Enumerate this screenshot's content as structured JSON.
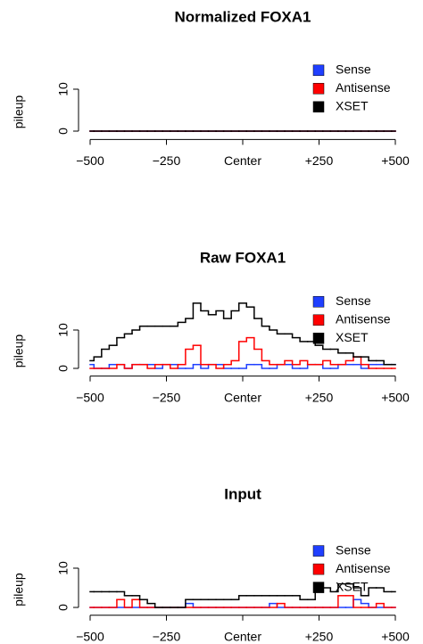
{
  "chart_data": [
    {
      "type": "line",
      "title": "Normalized FOXA1",
      "ylabel": "pileup",
      "legend": "top-right",
      "x": [
        -500,
        -475,
        -450,
        -425,
        -400,
        -375,
        -350,
        -325,
        -300,
        -275,
        -250,
        -225,
        -200,
        -175,
        -150,
        -125,
        -100,
        -75,
        -50,
        -25,
        0,
        25,
        50,
        75,
        100,
        125,
        150,
        175,
        200,
        225,
        250,
        275,
        300,
        325,
        350,
        375,
        400,
        425,
        450,
        475,
        500
      ],
      "xlim": [
        -500,
        500
      ],
      "xticks": [
        {
          "value": -500,
          "label": "−500"
        },
        {
          "value": -250,
          "label": "−250"
        },
        {
          "value": 0,
          "label": "Center"
        },
        {
          "value": 250,
          "label": "+250"
        },
        {
          "value": 500,
          "label": "+500"
        }
      ],
      "ylim": [
        -2,
        16
      ],
      "yticks": [
        0,
        10
      ],
      "series": [
        {
          "name": "Sense",
          "color": "#1f3fff",
          "values": [
            0,
            0,
            0,
            0,
            0,
            0,
            0,
            0,
            0,
            0,
            0,
            0,
            0,
            0,
            0,
            0,
            0,
            0,
            0,
            0,
            0,
            0,
            0,
            0,
            0,
            0,
            0,
            0,
            0,
            0,
            0,
            0,
            0,
            0,
            0,
            0,
            0,
            0,
            0,
            0,
            0
          ]
        },
        {
          "name": "Antisense",
          "color": "#ff0000",
          "values": [
            0,
            0,
            0,
            0,
            0,
            0,
            0,
            0,
            0,
            0,
            0,
            0,
            0,
            0,
            0,
            0,
            0,
            0,
            0,
            0,
            0,
            0,
            0,
            0,
            0,
            0,
            0,
            0,
            0,
            0,
            0,
            0,
            0,
            0,
            0,
            0,
            0,
            0,
            0,
            0,
            0
          ]
        },
        {
          "name": "XSET",
          "color": "#000000",
          "values": [
            0,
            0,
            0,
            0,
            0,
            0,
            0,
            0,
            0,
            0,
            0,
            0,
            0,
            0,
            0,
            0,
            0,
            0,
            0,
            0,
            0,
            0,
            0,
            0,
            0,
            0,
            0,
            0,
            0,
            0,
            0,
            0,
            0,
            0,
            0,
            0,
            0,
            0,
            0,
            0,
            0
          ]
        }
      ]
    },
    {
      "type": "line",
      "title": "Raw FOXA1",
      "ylabel": "pileup",
      "legend": "top-right",
      "x": [
        -500,
        -475,
        -450,
        -425,
        -400,
        -375,
        -350,
        -325,
        -300,
        -275,
        -250,
        -225,
        -200,
        -175,
        -150,
        -125,
        -100,
        -75,
        -50,
        -25,
        0,
        25,
        50,
        75,
        100,
        125,
        150,
        175,
        200,
        225,
        250,
        275,
        300,
        325,
        350,
        375,
        400,
        425,
        450,
        475,
        500
      ],
      "xlim": [
        -500,
        500
      ],
      "xticks": [
        {
          "value": -500,
          "label": "−500"
        },
        {
          "value": -250,
          "label": "−250"
        },
        {
          "value": 0,
          "label": "Center"
        },
        {
          "value": 250,
          "label": "+250"
        },
        {
          "value": 500,
          "label": "+500"
        }
      ],
      "ylim": [
        -2,
        19
      ],
      "yticks": [
        0,
        10
      ],
      "series": [
        {
          "name": "Sense",
          "color": "#1f3fff",
          "values": [
            1,
            0,
            0,
            1,
            1,
            0,
            1,
            1,
            1,
            0,
            1,
            1,
            0,
            0,
            1,
            0,
            1,
            1,
            0,
            0,
            0,
            1,
            1,
            0,
            0,
            1,
            1,
            0,
            0,
            1,
            1,
            0,
            0,
            1,
            1,
            1,
            0,
            1,
            1,
            1,
            1
          ]
        },
        {
          "name": "Antisense",
          "color": "#ff0000",
          "values": [
            0,
            0,
            0,
            0,
            1,
            0,
            1,
            1,
            0,
            1,
            1,
            0,
            1,
            5,
            6,
            1,
            1,
            0,
            1,
            2,
            7,
            8,
            5,
            2,
            1,
            1,
            2,
            1,
            2,
            1,
            1,
            2,
            1,
            1,
            2,
            3,
            1,
            0,
            0,
            0,
            0
          ]
        },
        {
          "name": "XSET",
          "color": "#000000",
          "values": [
            2,
            3,
            5,
            6,
            8,
            9,
            10,
            11,
            11,
            11,
            11,
            11,
            12,
            13,
            17,
            15,
            14,
            15,
            13,
            15,
            17,
            16,
            13,
            11,
            10,
            9,
            9,
            8,
            7,
            7,
            6,
            5,
            5,
            4,
            4,
            3,
            3,
            2,
            2,
            1,
            1
          ]
        }
      ]
    },
    {
      "type": "line",
      "title": "Input",
      "ylabel": "pileup",
      "legend": "top-right",
      "x": [
        -500,
        -475,
        -450,
        -425,
        -400,
        -375,
        -350,
        -325,
        -300,
        -275,
        -250,
        -225,
        -200,
        -175,
        -150,
        -125,
        -100,
        -75,
        -50,
        -25,
        0,
        25,
        50,
        75,
        100,
        125,
        150,
        175,
        200,
        225,
        250,
        275,
        300,
        325,
        350,
        375,
        400,
        425,
        450,
        475,
        500
      ],
      "xlim": [
        -500,
        500
      ],
      "xticks": [
        {
          "value": -500,
          "label": "−500"
        },
        {
          "value": -250,
          "label": "−250"
        },
        {
          "value": 0,
          "label": "Center"
        },
        {
          "value": 250,
          "label": "+250"
        },
        {
          "value": 500,
          "label": "+500"
        }
      ],
      "ylim": [
        -2,
        16
      ],
      "yticks": [
        0,
        10
      ],
      "series": [
        {
          "name": "Sense",
          "color": "#1f3fff",
          "values": [
            0,
            0,
            0,
            0,
            0,
            0,
            0,
            0,
            0,
            0,
            0,
            0,
            0,
            1,
            0,
            0,
            0,
            0,
            0,
            0,
            0,
            0,
            0,
            0,
            1,
            0,
            0,
            0,
            0,
            0,
            0,
            0,
            0,
            0,
            0,
            2,
            1,
            0,
            0,
            0,
            0
          ]
        },
        {
          "name": "Antisense",
          "color": "#ff0000",
          "values": [
            0,
            0,
            0,
            0,
            2,
            0,
            2,
            0,
            0,
            0,
            0,
            0,
            0,
            0,
            0,
            0,
            0,
            0,
            0,
            0,
            0,
            0,
            0,
            0,
            0,
            1,
            0,
            0,
            0,
            0,
            0,
            0,
            0,
            3,
            3,
            0,
            0,
            0,
            1,
            0,
            0
          ]
        },
        {
          "name": "XSET",
          "color": "#000000",
          "values": [
            4,
            4,
            4,
            4,
            4,
            3,
            3,
            2,
            1,
            0,
            0,
            0,
            0,
            2,
            2,
            2,
            2,
            2,
            2,
            2,
            3,
            3,
            3,
            3,
            3,
            3,
            3,
            3,
            2,
            2,
            5,
            5,
            4,
            6,
            6,
            5,
            3,
            5,
            5,
            4,
            4
          ]
        }
      ]
    }
  ]
}
